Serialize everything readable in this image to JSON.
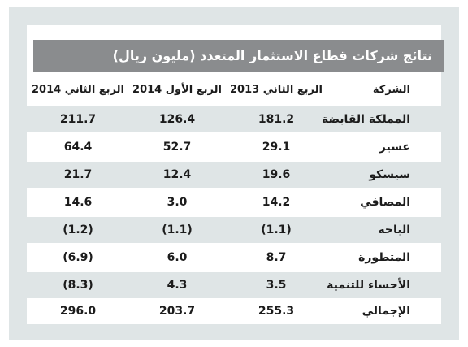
{
  "table": {
    "title": "نتائج شركات قطاع الاستثمار المتعدد (مليون ريال)",
    "headers": [
      "الشركة",
      "الربع الثاني 2013",
      "الربع الأول 2014",
      "الربع الثاني 2014"
    ],
    "rows": [
      {
        "company": "المملكة القابضة",
        "q2_2013": "181.2",
        "q1_2014": "126.4",
        "q2_2014": "211.7"
      },
      {
        "company": "عسير",
        "q2_2013": "29.1",
        "q1_2014": "52.7",
        "q2_2014": "64.4"
      },
      {
        "company": "سيسكو",
        "q2_2013": "19.6",
        "q1_2014": "12.4",
        "q2_2014": "21.7"
      },
      {
        "company": "المصافي",
        "q2_2013": "14.2",
        "q1_2014": "3.0",
        "q2_2014": "14.6"
      },
      {
        "company": "الباحة",
        "q2_2013": "(1.1)",
        "q1_2014": "(1.1)",
        "q2_2014": "(1.2)"
      },
      {
        "company": "المتطورة",
        "q2_2013": "8.7",
        "q1_2014": "6.0",
        "q2_2014": "(6.9)"
      },
      {
        "company": "الأحساء للتنمية",
        "q2_2013": "3.5",
        "q1_2014": "4.3",
        "q2_2014": "(8.3)"
      },
      {
        "company": "الإجمالي",
        "q2_2013": "255.3",
        "q1_2014": "203.7",
        "q2_2014": "296.0"
      }
    ]
  },
  "colors": {
    "frame": "#dfe5e6",
    "title_bar": "#8a8c8e",
    "row_shade": "#dfe5e6"
  }
}
